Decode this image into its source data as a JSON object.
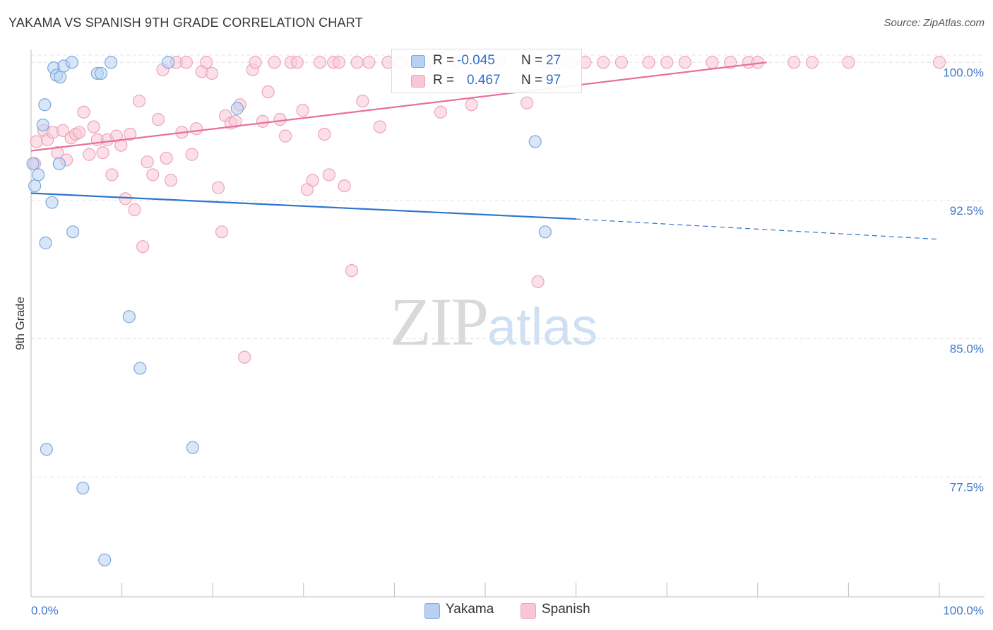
{
  "title": "YAKAMA VS SPANISH 9TH GRADE CORRELATION CHART",
  "source": "Source: ZipAtlas.com",
  "watermark": {
    "zip": "ZIP",
    "atlas": "atlas"
  },
  "legend": {
    "yakama": {
      "r_label": "R =",
      "r_value": "-0.045",
      "n_label": "N =",
      "n_value": "27"
    },
    "spanish": {
      "r_label": "R =",
      "r_value": "0.467",
      "n_label": "N =",
      "n_value": "97"
    }
  },
  "bottom_legend": {
    "yakama": "Yakama",
    "spanish": "Spanish"
  },
  "colors": {
    "yakama_fill": "#b8d1f3",
    "yakama_stroke": "#7fa8df",
    "yakama_line": "#2f74d0",
    "spanish_fill": "#f9c6d5",
    "spanish_stroke": "#eea3ba",
    "spanish_line": "#e8709a",
    "axis_label": "#3f78c9",
    "grid": "#e3e3e3"
  },
  "chart_data": {
    "type": "scatter",
    "title": "YAKAMA VS SPANISH 9TH GRADE CORRELATION CHART",
    "xlabel": "",
    "ylabel": "9th Grade",
    "xlim": [
      0,
      100
    ],
    "ylim": [
      71,
      100.7
    ],
    "x_tick_labels": [
      "0.0%",
      "100.0%"
    ],
    "y_ticks": [
      77.5,
      85.0,
      92.5,
      100.0
    ],
    "y_tick_labels": [
      "77.5%",
      "85.0%",
      "92.5%",
      "100.0%"
    ],
    "grid": true,
    "legend_position": "top-center",
    "series": [
      {
        "name": "Yakama",
        "r": -0.045,
        "n": 27,
        "trend": {
          "x0": 0,
          "y0": 92.9,
          "x1": 60,
          "y1": 91.5,
          "dashed_to_x": 100,
          "dashed_to_y": 90.4
        },
        "points": [
          [
            0.2,
            94.5
          ],
          [
            0.4,
            93.3
          ],
          [
            0.8,
            93.9
          ],
          [
            1.3,
            96.6
          ],
          [
            1.5,
            97.7
          ],
          [
            1.6,
            90.2
          ],
          [
            2.3,
            92.4
          ],
          [
            2.5,
            99.7
          ],
          [
            2.8,
            99.3
          ],
          [
            3.2,
            99.2
          ],
          [
            3.1,
            94.5
          ],
          [
            3.6,
            99.8
          ],
          [
            4.5,
            100.0
          ],
          [
            4.6,
            90.8
          ],
          [
            7.3,
            99.4
          ],
          [
            7.7,
            99.4
          ],
          [
            8.8,
            100.0
          ],
          [
            10.8,
            86.2
          ],
          [
            12.0,
            83.4
          ],
          [
            15.1,
            100.0
          ],
          [
            22.7,
            97.5
          ],
          [
            55.5,
            95.7
          ],
          [
            56.6,
            90.8
          ],
          [
            1.7,
            79.0
          ],
          [
            17.8,
            79.1
          ],
          [
            5.7,
            76.9
          ],
          [
            8.1,
            73.0
          ]
        ]
      },
      {
        "name": "Spanish",
        "r": 0.467,
        "n": 97,
        "trend": {
          "x0": 0,
          "y0": 95.2,
          "x1": 81,
          "y1": 100.0
        },
        "points": [
          [
            0.4,
            94.5
          ],
          [
            0.6,
            95.7
          ],
          [
            1.4,
            96.3
          ],
          [
            1.8,
            95.8
          ],
          [
            2.4,
            96.2
          ],
          [
            2.9,
            95.1
          ],
          [
            3.5,
            96.3
          ],
          [
            3.9,
            94.7
          ],
          [
            4.4,
            95.9
          ],
          [
            4.9,
            96.1
          ],
          [
            5.3,
            96.2
          ],
          [
            5.8,
            97.3
          ],
          [
            6.4,
            95.0
          ],
          [
            6.9,
            96.5
          ],
          [
            7.3,
            95.8
          ],
          [
            7.9,
            95.1
          ],
          [
            8.4,
            95.8
          ],
          [
            8.9,
            93.9
          ],
          [
            9.4,
            96.0
          ],
          [
            9.9,
            95.5
          ],
          [
            10.4,
            92.6
          ],
          [
            10.9,
            96.1
          ],
          [
            11.4,
            92.0
          ],
          [
            11.9,
            97.9
          ],
          [
            12.3,
            90.0
          ],
          [
            12.8,
            94.6
          ],
          [
            13.4,
            93.9
          ],
          [
            14.0,
            96.9
          ],
          [
            14.5,
            99.6
          ],
          [
            14.9,
            94.8
          ],
          [
            15.4,
            93.6
          ],
          [
            16.0,
            100.0
          ],
          [
            16.6,
            96.2
          ],
          [
            17.1,
            100.0
          ],
          [
            17.7,
            95.0
          ],
          [
            18.2,
            96.4
          ],
          [
            18.8,
            99.5
          ],
          [
            19.3,
            100.0
          ],
          [
            19.9,
            99.4
          ],
          [
            20.6,
            93.2
          ],
          [
            21.0,
            90.8
          ],
          [
            21.4,
            97.1
          ],
          [
            22.0,
            96.7
          ],
          [
            22.5,
            96.8
          ],
          [
            23.0,
            97.7
          ],
          [
            23.5,
            84.0
          ],
          [
            24.4,
            99.6
          ],
          [
            24.7,
            100.0
          ],
          [
            25.5,
            96.8
          ],
          [
            26.1,
            98.4
          ],
          [
            26.8,
            100.0
          ],
          [
            27.4,
            96.9
          ],
          [
            28.0,
            96.0
          ],
          [
            28.6,
            100.0
          ],
          [
            29.3,
            100.0
          ],
          [
            29.9,
            97.4
          ],
          [
            30.4,
            93.1
          ],
          [
            31.0,
            93.6
          ],
          [
            31.8,
            100.0
          ],
          [
            32.3,
            96.1
          ],
          [
            32.8,
            93.9
          ],
          [
            33.3,
            100.0
          ],
          [
            33.9,
            100.0
          ],
          [
            34.5,
            93.3
          ],
          [
            35.3,
            88.7
          ],
          [
            35.9,
            100.0
          ],
          [
            36.5,
            97.9
          ],
          [
            37.2,
            100.0
          ],
          [
            38.4,
            96.5
          ],
          [
            39.3,
            100.0
          ],
          [
            40.6,
            100.0
          ],
          [
            42.0,
            100.0
          ],
          [
            43.4,
            100.0
          ],
          [
            45.1,
            97.3
          ],
          [
            46.8,
            100.0
          ],
          [
            48.5,
            97.7
          ],
          [
            50.0,
            100.0
          ],
          [
            51.5,
            100.0
          ],
          [
            54.6,
            97.8
          ],
          [
            55.8,
            88.1
          ],
          [
            56.6,
            100.0
          ],
          [
            58.0,
            100.0
          ],
          [
            59.5,
            100.0
          ],
          [
            61.0,
            100.0
          ],
          [
            63.0,
            100.0
          ],
          [
            65.0,
            100.0
          ],
          [
            68.0,
            100.0
          ],
          [
            70.0,
            100.0
          ],
          [
            72.0,
            100.0
          ],
          [
            75.0,
            100.0
          ],
          [
            77.0,
            100.0
          ],
          [
            79.0,
            100.0
          ],
          [
            80.0,
            100.0
          ],
          [
            84.0,
            100.0
          ],
          [
            86.0,
            100.0
          ],
          [
            90.0,
            100.0
          ],
          [
            100.0,
            100.0
          ]
        ]
      }
    ]
  }
}
